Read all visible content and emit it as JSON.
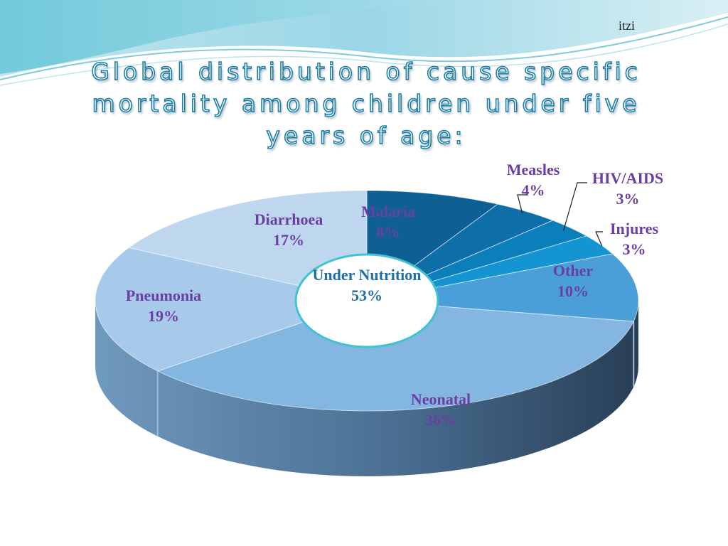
{
  "author": "itzi",
  "title": "Global distribution of cause specific mortality among children under five years of age:",
  "colors": {
    "title_text": "#ffffff",
    "title_outline": "#1d7fa8",
    "label_text": "#6a3ea3",
    "center_label_text": "#1f6fa5",
    "center_circle_border": "#3ec3d0"
  },
  "chart_data": {
    "type": "pie",
    "style": "3d-exploded",
    "title": "Global distribution of cause specific mortality among children under five years of age:",
    "slices": [
      {
        "label": "Malaria",
        "value": 8,
        "value_label": "8%",
        "color": "#0e5f94"
      },
      {
        "label": "Measles",
        "value": 4,
        "value_label": "4%",
        "color": "#0d6ea8"
      },
      {
        "label": "HIV/AIDS",
        "value": 3,
        "value_label": "3%",
        "color": "#0a7fbc"
      },
      {
        "label": "Injures",
        "value": 3,
        "value_label": "3%",
        "color": "#1494d1"
      },
      {
        "label": "Other",
        "value": 10,
        "value_label": "10%",
        "color": "#4b9fd8"
      },
      {
        "label": "Neonatal",
        "value": 36,
        "value_label": "36%",
        "color": "#83b6e0"
      },
      {
        "label": "Pneumonia",
        "value": 19,
        "value_label": "19%",
        "color": "#a7c9ea"
      },
      {
        "label": "Diarrhoea",
        "value": 17,
        "value_label": "17%",
        "color": "#bed7ee"
      }
    ],
    "center_label": {
      "label": "Under Nutrition",
      "value": 53,
      "value_label": "53%"
    }
  }
}
